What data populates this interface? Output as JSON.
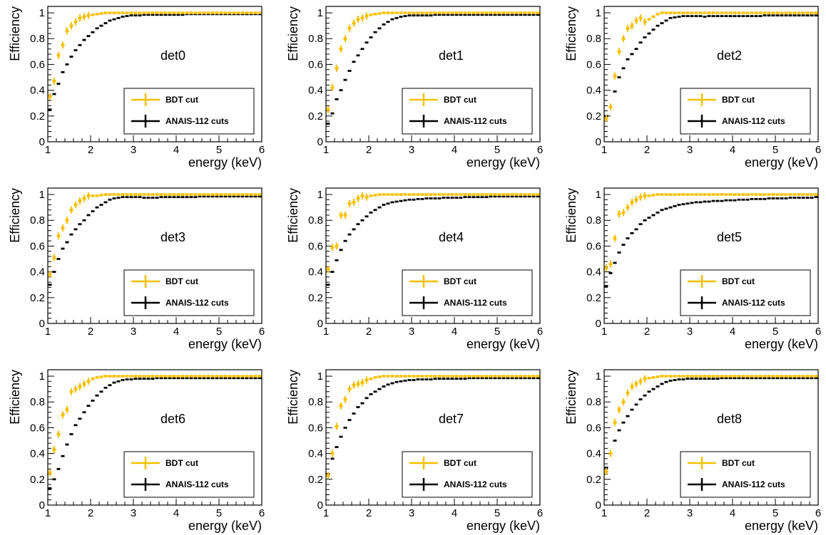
{
  "chart_data": {
    "type": "scatter",
    "layout": "3x3 grid",
    "legend_placement": "bottom-right",
    "grid": false,
    "xlabel": "energy (keV)",
    "ylabel": "Efficiency",
    "xlim": [
      1,
      6
    ],
    "ylim": [
      0,
      1.05
    ],
    "xticks": [
      "1",
      "2",
      "3",
      "4",
      "5",
      "6"
    ],
    "yticks": [
      "0",
      "0.2",
      "0.4",
      "0.6",
      "0.8",
      "1"
    ],
    "legend": [
      "BDT cut",
      "ANAIS-112 cuts"
    ],
    "colors": {
      "bdt": "#f5c000",
      "anais": "#000000"
    },
    "x": [
      1.05,
      1.15,
      1.25,
      1.35,
      1.45,
      1.55,
      1.65,
      1.75,
      1.85,
      1.95,
      2.05,
      2.15,
      2.25,
      2.35,
      2.45,
      2.55,
      2.65,
      2.75,
      2.85,
      2.95,
      3.05,
      3.15,
      3.25,
      3.35,
      3.45,
      3.55,
      3.65,
      3.75,
      3.85,
      3.95,
      4.05,
      4.15,
      4.25,
      4.35,
      4.45,
      4.55,
      4.65,
      4.75,
      4.85,
      4.95,
      5.05,
      5.15,
      5.25,
      5.35,
      5.45,
      5.55,
      5.65,
      5.75,
      5.85,
      5.95
    ],
    "panels": [
      {
        "label": "det0",
        "bdt": [
          0.35,
          0.47,
          0.67,
          0.75,
          0.86,
          0.9,
          0.93,
          0.96,
          0.97,
          0.98,
          0.985,
          0.99,
          0.995,
          1,
          1,
          1,
          1,
          1,
          1,
          1,
          1,
          1,
          1,
          1,
          1,
          1,
          1,
          1,
          1,
          1,
          1,
          1,
          1,
          1,
          1,
          1,
          1,
          1,
          1,
          1,
          1,
          1,
          1,
          1,
          1,
          1,
          1,
          1,
          1,
          1
        ],
        "anais": [
          0.25,
          0.37,
          0.45,
          0.54,
          0.6,
          0.66,
          0.71,
          0.75,
          0.79,
          0.82,
          0.85,
          0.88,
          0.9,
          0.92,
          0.94,
          0.95,
          0.96,
          0.97,
          0.975,
          0.98,
          0.98,
          0.98,
          0.985,
          0.985,
          0.985,
          0.985,
          0.985,
          0.985,
          0.985,
          0.985,
          0.985,
          0.985,
          0.99,
          0.99,
          0.99,
          0.99,
          0.99,
          0.99,
          0.99,
          0.99,
          0.99,
          0.99,
          0.99,
          0.99,
          0.99,
          0.99,
          0.99,
          0.99,
          0.99,
          0.99
        ]
      },
      {
        "label": "det1",
        "bdt": [
          0.25,
          0.42,
          0.57,
          0.72,
          0.8,
          0.88,
          0.92,
          0.95,
          0.96,
          0.975,
          0.985,
          0.99,
          0.995,
          1,
          1,
          1,
          1,
          1,
          1,
          1,
          1,
          1,
          1,
          1,
          1,
          1,
          1,
          1,
          1,
          1,
          1,
          1,
          1,
          1,
          1,
          1,
          1,
          1,
          1,
          1,
          1,
          1,
          1,
          1,
          1,
          1,
          1,
          1,
          1,
          1
        ],
        "anais": [
          0.14,
          0.22,
          0.33,
          0.4,
          0.48,
          0.55,
          0.62,
          0.67,
          0.72,
          0.77,
          0.81,
          0.85,
          0.88,
          0.91,
          0.93,
          0.95,
          0.96,
          0.97,
          0.975,
          0.98,
          0.98,
          0.98,
          0.98,
          0.98,
          0.98,
          0.985,
          0.985,
          0.985,
          0.985,
          0.985,
          0.985,
          0.985,
          0.985,
          0.985,
          0.985,
          0.985,
          0.985,
          0.985,
          0.985,
          0.985,
          0.985,
          0.985,
          0.985,
          0.985,
          0.985,
          0.985,
          0.985,
          0.985,
          0.985,
          0.985
        ]
      },
      {
        "label": "det2",
        "bdt": [
          0.18,
          0.27,
          0.51,
          0.7,
          0.8,
          0.88,
          0.9,
          0.94,
          0.96,
          0.93,
          0.95,
          0.97,
          0.99,
          1,
          1,
          1,
          1,
          1,
          1,
          1,
          1,
          1,
          1,
          1,
          1,
          1,
          1,
          1,
          1,
          1,
          1,
          1,
          1,
          1,
          1,
          1,
          1,
          1,
          1,
          1,
          1,
          1,
          1,
          1,
          1,
          1,
          1,
          1,
          1,
          1
        ],
        "anais": [
          0.2,
          0.27,
          0.39,
          0.5,
          0.57,
          0.64,
          0.68,
          0.72,
          0.77,
          0.81,
          0.84,
          0.87,
          0.9,
          0.92,
          0.94,
          0.96,
          0.965,
          0.97,
          0.975,
          0.975,
          0.975,
          0.975,
          0.975,
          0.97,
          0.975,
          0.975,
          0.975,
          0.975,
          0.975,
          0.975,
          0.975,
          0.975,
          0.975,
          0.975,
          0.975,
          0.975,
          0.975,
          0.98,
          0.98,
          0.98,
          0.98,
          0.98,
          0.98,
          0.98,
          0.98,
          0.98,
          0.98,
          0.98,
          0.98,
          0.98
        ]
      },
      {
        "label": "det3",
        "bdt": [
          0.38,
          0.51,
          0.68,
          0.74,
          0.8,
          0.88,
          0.92,
          0.95,
          0.97,
          0.99,
          0.99,
          0.99,
          0.995,
          1,
          1,
          1,
          1,
          1,
          1,
          1,
          1,
          1,
          1,
          1,
          1,
          1,
          1,
          1,
          1,
          1,
          1,
          1,
          1,
          1,
          1,
          1,
          1,
          1,
          1,
          1,
          1,
          1,
          1,
          1,
          1,
          1,
          1,
          1,
          1,
          1
        ],
        "anais": [
          0.3,
          0.4,
          0.5,
          0.58,
          0.63,
          0.69,
          0.73,
          0.77,
          0.8,
          0.84,
          0.87,
          0.9,
          0.92,
          0.94,
          0.96,
          0.97,
          0.975,
          0.98,
          0.98,
          0.98,
          0.98,
          0.98,
          0.975,
          0.975,
          0.975,
          0.975,
          0.98,
          0.98,
          0.98,
          0.98,
          0.98,
          0.98,
          0.98,
          0.98,
          0.98,
          0.985,
          0.985,
          0.985,
          0.985,
          0.985,
          0.985,
          0.985,
          0.985,
          0.985,
          0.985,
          0.985,
          0.985,
          0.985,
          0.985,
          0.985
        ]
      },
      {
        "label": "det4",
        "bdt": [
          0.42,
          0.59,
          0.6,
          0.84,
          0.84,
          0.93,
          0.94,
          0.97,
          0.99,
          0.98,
          0.99,
          0.995,
          1,
          1,
          1,
          1,
          1,
          1,
          1,
          1,
          1,
          1,
          1,
          1,
          1,
          1,
          1,
          1,
          1,
          1,
          1,
          1,
          1,
          1,
          1,
          1,
          1,
          1,
          1,
          1,
          1,
          1,
          1,
          1,
          1,
          1,
          1,
          1,
          1,
          1
        ],
        "anais": [
          0.3,
          0.4,
          0.49,
          0.57,
          0.64,
          0.69,
          0.73,
          0.77,
          0.8,
          0.83,
          0.86,
          0.88,
          0.9,
          0.92,
          0.93,
          0.94,
          0.945,
          0.95,
          0.955,
          0.96,
          0.96,
          0.965,
          0.965,
          0.97,
          0.97,
          0.97,
          0.97,
          0.975,
          0.975,
          0.975,
          0.975,
          0.975,
          0.98,
          0.98,
          0.98,
          0.98,
          0.98,
          0.98,
          0.985,
          0.985,
          0.985,
          0.985,
          0.985,
          0.985,
          0.985,
          0.985,
          0.985,
          0.985,
          0.985,
          0.985
        ]
      },
      {
        "label": "det5",
        "bdt": [
          0.43,
          0.46,
          0.66,
          0.85,
          0.86,
          0.9,
          0.94,
          0.96,
          0.98,
          0.99,
          0.99,
          0.995,
          1,
          1,
          1,
          1,
          1,
          1,
          1,
          1,
          1,
          1,
          1,
          1,
          1,
          1,
          1,
          1,
          1,
          1,
          1,
          1,
          1,
          1,
          1,
          1,
          1,
          1,
          1,
          1,
          1,
          1,
          1,
          1,
          1,
          1,
          1,
          1,
          1,
          1
        ],
        "anais": [
          0.29,
          0.39,
          0.47,
          0.55,
          0.61,
          0.66,
          0.7,
          0.73,
          0.77,
          0.8,
          0.82,
          0.84,
          0.86,
          0.88,
          0.89,
          0.9,
          0.91,
          0.92,
          0.925,
          0.93,
          0.935,
          0.94,
          0.94,
          0.945,
          0.945,
          0.95,
          0.95,
          0.95,
          0.955,
          0.955,
          0.955,
          0.96,
          0.96,
          0.96,
          0.965,
          0.965,
          0.965,
          0.965,
          0.97,
          0.97,
          0.97,
          0.97,
          0.97,
          0.975,
          0.975,
          0.975,
          0.975,
          0.975,
          0.975,
          0.98
        ]
      },
      {
        "label": "det6",
        "bdt": [
          0.25,
          0.43,
          0.55,
          0.7,
          0.74,
          0.88,
          0.9,
          0.92,
          0.94,
          0.96,
          0.98,
          0.99,
          0.995,
          1,
          1,
          1,
          1,
          1,
          1,
          1,
          1,
          1,
          1,
          1,
          1,
          1,
          1,
          1,
          1,
          1,
          1,
          1,
          1,
          1,
          1,
          1,
          1,
          1,
          1,
          1,
          1,
          1,
          1,
          1,
          1,
          1,
          1,
          1,
          1,
          1
        ],
        "anais": [
          0.13,
          0.2,
          0.28,
          0.38,
          0.47,
          0.55,
          0.62,
          0.67,
          0.72,
          0.77,
          0.81,
          0.85,
          0.88,
          0.91,
          0.93,
          0.95,
          0.96,
          0.97,
          0.975,
          0.975,
          0.98,
          0.98,
          0.98,
          0.98,
          0.98,
          0.985,
          0.985,
          0.985,
          0.985,
          0.985,
          0.985,
          0.985,
          0.985,
          0.985,
          0.985,
          0.985,
          0.985,
          0.985,
          0.985,
          0.985,
          0.985,
          0.985,
          0.985,
          0.985,
          0.985,
          0.985,
          0.985,
          0.985,
          0.985,
          0.985
        ]
      },
      {
        "label": "det7",
        "bdt": [
          0.23,
          0.4,
          0.61,
          0.77,
          0.82,
          0.9,
          0.93,
          0.94,
          0.95,
          0.97,
          0.98,
          0.99,
          0.995,
          1,
          1,
          1,
          1,
          1,
          1,
          1,
          1,
          1,
          1,
          1,
          1,
          1,
          1,
          1,
          1,
          1,
          1,
          1,
          1,
          1,
          1,
          1,
          1,
          1,
          1,
          1,
          1,
          1,
          1,
          1,
          1,
          1,
          1,
          1,
          1,
          1
        ],
        "anais": [
          0.24,
          0.36,
          0.45,
          0.53,
          0.6,
          0.66,
          0.71,
          0.76,
          0.79,
          0.83,
          0.86,
          0.88,
          0.9,
          0.92,
          0.935,
          0.945,
          0.955,
          0.96,
          0.965,
          0.97,
          0.97,
          0.975,
          0.975,
          0.975,
          0.975,
          0.98,
          0.98,
          0.98,
          0.98,
          0.98,
          0.98,
          0.98,
          0.98,
          0.985,
          0.985,
          0.985,
          0.985,
          0.985,
          0.985,
          0.985,
          0.985,
          0.985,
          0.985,
          0.985,
          0.985,
          0.985,
          0.985,
          0.985,
          0.985,
          0.985
        ]
      },
      {
        "label": "det8",
        "bdt": [
          0.26,
          0.4,
          0.64,
          0.74,
          0.8,
          0.87,
          0.92,
          0.94,
          0.96,
          0.98,
          0.985,
          0.99,
          0.995,
          1,
          1,
          1,
          1,
          1,
          1,
          1,
          1,
          1,
          1,
          1,
          1,
          1,
          1,
          1,
          1,
          1,
          1,
          1,
          1,
          1,
          1,
          1,
          1,
          1,
          1,
          1,
          1,
          1,
          1,
          1,
          1,
          1,
          1,
          1,
          1,
          1
        ],
        "anais": [
          0.29,
          0.4,
          0.5,
          0.58,
          0.64,
          0.69,
          0.74,
          0.78,
          0.82,
          0.85,
          0.88,
          0.9,
          0.92,
          0.94,
          0.955,
          0.965,
          0.97,
          0.975,
          0.975,
          0.98,
          0.98,
          0.98,
          0.98,
          0.98,
          0.98,
          0.98,
          0.98,
          0.985,
          0.985,
          0.985,
          0.985,
          0.985,
          0.985,
          0.985,
          0.985,
          0.985,
          0.985,
          0.985,
          0.985,
          0.985,
          0.985,
          0.985,
          0.985,
          0.985,
          0.985,
          0.985,
          0.985,
          0.985,
          0.985,
          0.985
        ]
      }
    ]
  }
}
